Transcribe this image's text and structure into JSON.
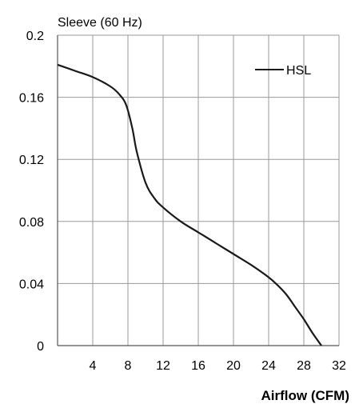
{
  "chart_data": {
    "type": "line",
    "title": "Sleeve (60 Hz)",
    "xlabel": "Airflow (CFM)",
    "ylabel": "",
    "xlim": [
      0,
      32
    ],
    "ylim": [
      0,
      0.2
    ],
    "x_ticks": [
      4,
      8,
      12,
      16,
      20,
      24,
      28,
      32
    ],
    "x_tick_labels": [
      "4",
      "8",
      "12",
      "16",
      "20",
      "24",
      "28",
      "32"
    ],
    "y_ticks": [
      0,
      0.04,
      0.08,
      0.12,
      0.16,
      0.2
    ],
    "y_tick_labels": [
      "0",
      "0.04",
      "0.08",
      "0.12",
      "0.16",
      "0.2"
    ],
    "grid": true,
    "legend_position": "top-right",
    "series": [
      {
        "name": "HSL",
        "color": "#1a1a1a",
        "x": [
          0,
          2,
          4,
          6,
          7,
          7.8,
          8.5,
          9,
          10,
          11,
          12,
          14,
          16,
          18,
          20,
          22,
          24,
          25,
          26,
          27,
          28,
          29,
          30
        ],
        "y": [
          0.181,
          0.177,
          0.173,
          0.167,
          0.162,
          0.155,
          0.14,
          0.125,
          0.105,
          0.095,
          0.089,
          0.08,
          0.073,
          0.066,
          0.059,
          0.052,
          0.044,
          0.039,
          0.033,
          0.025,
          0.017,
          0.008,
          0
        ]
      }
    ]
  }
}
